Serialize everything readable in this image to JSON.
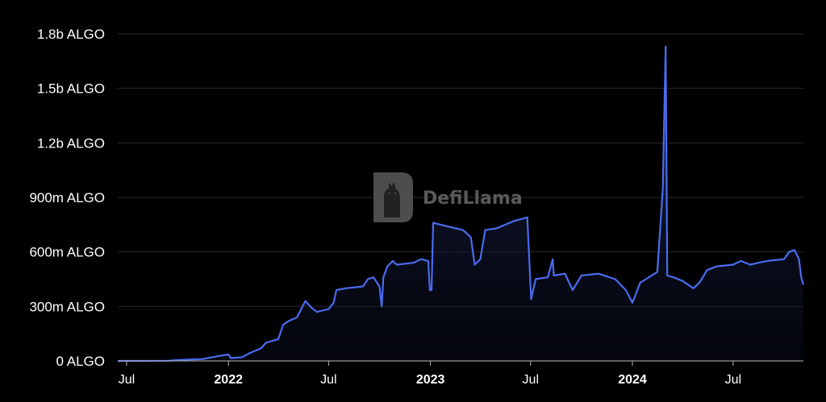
{
  "chart_data": {
    "type": "area",
    "title": "",
    "xlabel": "",
    "ylabel": "",
    "unit": "ALGO",
    "grid": true,
    "legend": "none",
    "line_color": "#4a6bf0",
    "fill_color_top": "#1a2550",
    "ylim": [
      0,
      1800000000
    ],
    "xlim": [
      "2021-06-15",
      "2024-11-05"
    ],
    "y_ticks": [
      {
        "value": 0,
        "label": "0 ALGO"
      },
      {
        "value": 300000000,
        "label": "300m ALGO"
      },
      {
        "value": 600000000,
        "label": "600m ALGO"
      },
      {
        "value": 900000000,
        "label": "900m ALGO"
      },
      {
        "value": 1200000000,
        "label": "1.2b ALGO"
      },
      {
        "value": 1500000000,
        "label": "1.5b ALGO"
      },
      {
        "value": 1800000000,
        "label": "1.8b ALGO"
      }
    ],
    "x_ticks": [
      {
        "value": "2021-07-01",
        "label": "Jul",
        "bold": false
      },
      {
        "value": "2022-01-01",
        "label": "2022",
        "bold": true
      },
      {
        "value": "2022-07-01",
        "label": "Jul",
        "bold": false
      },
      {
        "value": "2023-01-01",
        "label": "2023",
        "bold": true
      },
      {
        "value": "2023-07-01",
        "label": "Jul",
        "bold": false
      },
      {
        "value": "2024-01-01",
        "label": "2024",
        "bold": true
      },
      {
        "value": "2024-07-01",
        "label": "Jul",
        "bold": false
      }
    ],
    "series": [
      {
        "points": [
          [
            "2021-06-15",
            0
          ],
          [
            "2021-09-15",
            1000000
          ],
          [
            "2021-10-01",
            5000000
          ],
          [
            "2021-11-15",
            10000000
          ],
          [
            "2021-12-20",
            30000000
          ],
          [
            "2022-01-01",
            35000000
          ],
          [
            "2022-01-05",
            15000000
          ],
          [
            "2022-01-25",
            20000000
          ],
          [
            "2022-02-10",
            45000000
          ],
          [
            "2022-03-01",
            70000000
          ],
          [
            "2022-03-10",
            100000000
          ],
          [
            "2022-04-01",
            120000000
          ],
          [
            "2022-04-10",
            200000000
          ],
          [
            "2022-04-20",
            220000000
          ],
          [
            "2022-05-05",
            240000000
          ],
          [
            "2022-05-15",
            300000000
          ],
          [
            "2022-05-20",
            330000000
          ],
          [
            "2022-06-01",
            290000000
          ],
          [
            "2022-06-10",
            270000000
          ],
          [
            "2022-07-01",
            285000000
          ],
          [
            "2022-07-10",
            320000000
          ],
          [
            "2022-07-15",
            390000000
          ],
          [
            "2022-08-01",
            400000000
          ],
          [
            "2022-09-01",
            410000000
          ],
          [
            "2022-09-10",
            450000000
          ],
          [
            "2022-09-20",
            460000000
          ],
          [
            "2022-10-01",
            410000000
          ],
          [
            "2022-10-05",
            300000000
          ],
          [
            "2022-10-08",
            460000000
          ],
          [
            "2022-10-15",
            520000000
          ],
          [
            "2022-10-25",
            550000000
          ],
          [
            "2022-11-01",
            530000000
          ],
          [
            "2022-12-01",
            540000000
          ],
          [
            "2022-12-15",
            560000000
          ],
          [
            "2022-12-28",
            550000000
          ],
          [
            "2022-12-31",
            390000000
          ],
          [
            "2023-01-03",
            390000000
          ],
          [
            "2023-01-06",
            760000000
          ],
          [
            "2023-02-01",
            740000000
          ],
          [
            "2023-03-01",
            720000000
          ],
          [
            "2023-03-15",
            680000000
          ],
          [
            "2023-03-22",
            530000000
          ],
          [
            "2023-04-01",
            560000000
          ],
          [
            "2023-04-10",
            720000000
          ],
          [
            "2023-05-01",
            730000000
          ],
          [
            "2023-06-01",
            770000000
          ],
          [
            "2023-06-25",
            790000000
          ],
          [
            "2023-06-28",
            600000000
          ],
          [
            "2023-07-02",
            340000000
          ],
          [
            "2023-07-10",
            450000000
          ],
          [
            "2023-08-01",
            460000000
          ],
          [
            "2023-08-10",
            560000000
          ],
          [
            "2023-08-12",
            470000000
          ],
          [
            "2023-09-01",
            480000000
          ],
          [
            "2023-09-15",
            390000000
          ],
          [
            "2023-10-01",
            470000000
          ],
          [
            "2023-11-01",
            480000000
          ],
          [
            "2023-12-01",
            450000000
          ],
          [
            "2023-12-20",
            390000000
          ],
          [
            "2024-01-01",
            320000000
          ],
          [
            "2024-01-15",
            430000000
          ],
          [
            "2024-02-15",
            490000000
          ],
          [
            "2024-02-25",
            950000000
          ],
          [
            "2024-03-01",
            1730000000
          ],
          [
            "2024-03-04",
            470000000
          ],
          [
            "2024-03-15",
            460000000
          ],
          [
            "2024-04-01",
            440000000
          ],
          [
            "2024-04-20",
            400000000
          ],
          [
            "2024-05-01",
            430000000
          ],
          [
            "2024-05-15",
            500000000
          ],
          [
            "2024-06-01",
            520000000
          ],
          [
            "2024-07-01",
            530000000
          ],
          [
            "2024-07-15",
            550000000
          ],
          [
            "2024-08-01",
            530000000
          ],
          [
            "2024-08-15",
            540000000
          ],
          [
            "2024-09-01",
            550000000
          ],
          [
            "2024-10-01",
            560000000
          ],
          [
            "2024-10-10",
            600000000
          ],
          [
            "2024-10-20",
            610000000
          ],
          [
            "2024-10-28",
            560000000
          ],
          [
            "2024-11-01",
            460000000
          ],
          [
            "2024-11-05",
            420000000
          ]
        ]
      }
    ]
  },
  "watermark": {
    "text": "DefiLlama",
    "icon": "llama-logo-icon"
  }
}
